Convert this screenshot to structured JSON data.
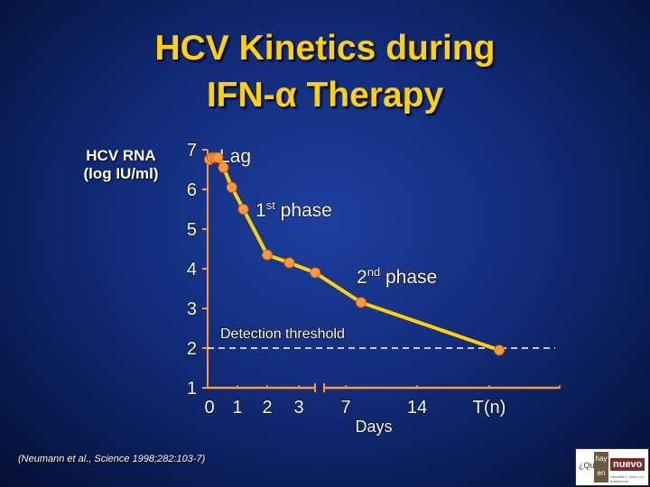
{
  "slide": {
    "title_line1": "HCV Kinetics during",
    "title_line2": "IFN-α Therapy",
    "y_axis_label_line1": "HCV RNA",
    "y_axis_label_line2": "(log IU/ml)",
    "citation": "(Neumann et al., Science 1998;282:103-7)",
    "logo": {
      "prefix": "¿Qué",
      "box_top": "hay",
      "box_bottom": "en",
      "word": "nuevo",
      "fine_print": "Hepatitis C virus y su tratamiento"
    }
  },
  "colors": {
    "title": "#ffd200",
    "curve": "#ffd200",
    "marker": "#ff9a3c",
    "axis": "#ff9a3c",
    "text": "#ffffff",
    "background": "#122c7a"
  },
  "chart_data": {
    "type": "line",
    "xlabel": "Days",
    "ylabel": "HCV RNA (log IU/ml)",
    "x_ticks": [
      "0",
      "1",
      "2",
      "3",
      "7",
      "14",
      "T(n)"
    ],
    "y_ticks": [
      "1",
      "2",
      "3",
      "4",
      "5",
      "6",
      "7"
    ],
    "ylim": [
      1,
      7
    ],
    "axis_break": true,
    "grid": false,
    "series": [
      {
        "points": [
          {
            "x": "0",
            "y": 6.75
          },
          {
            "x": "0.1",
            "y": 6.8
          },
          {
            "x": "0.2",
            "y": 6.8
          },
          {
            "x": "0.3",
            "y": 6.8
          },
          {
            "x": "0.5",
            "y": 6.55
          },
          {
            "x": "0.8",
            "y": 6.05
          },
          {
            "x": "1.2",
            "y": 5.5
          },
          {
            "x": "2",
            "y": 4.35
          },
          {
            "x": "2.7",
            "y": 4.15
          },
          {
            "x": "4.4",
            "y": 3.9
          },
          {
            "x": "8.5",
            "y": 3.15
          },
          {
            "x": "T(n)",
            "y": 1.95
          }
        ]
      }
    ],
    "threshold": {
      "label": "Detection threshold",
      "y": 2
    },
    "annotations": [
      "Lag",
      "1st phase",
      "2nd phase"
    ]
  }
}
